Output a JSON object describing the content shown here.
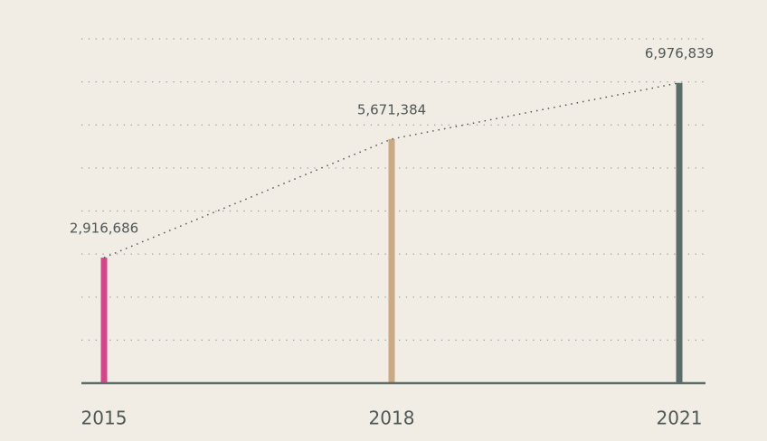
{
  "chart_data": {
    "type": "bar",
    "categories": [
      "2015",
      "2018",
      "2021"
    ],
    "values": [
      2916686,
      5671384,
      6976839
    ],
    "value_labels": [
      "2,916,686",
      "5,671,384",
      "6,976,839"
    ],
    "colors": [
      "#d4468a",
      "#c9aa85",
      "#5b6c69"
    ],
    "ylim": [
      0,
      8000000
    ],
    "yticks": [
      1000000,
      2000000,
      3000000,
      4000000,
      5000000,
      6000000,
      7000000,
      8000000
    ],
    "grid": true,
    "tick_labels": false,
    "trend_line": true
  }
}
